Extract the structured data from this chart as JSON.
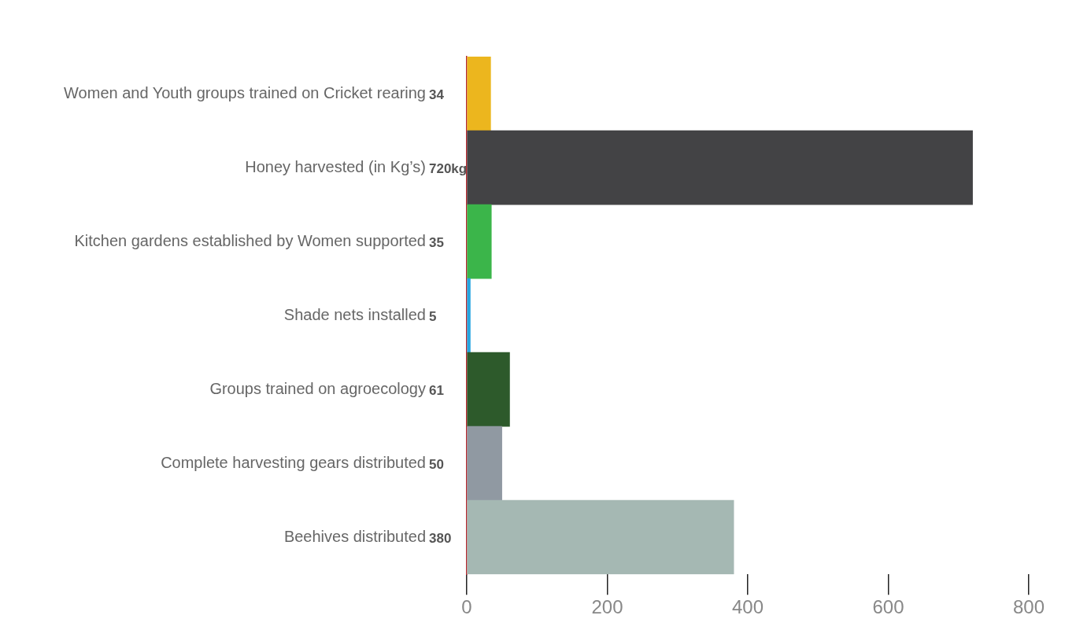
{
  "chart_data": {
    "type": "bar",
    "orientation": "horizontal",
    "categories": [
      "Women and Youth groups trained on Cricket rearing",
      "Honey harvested (in Kg’s)",
      "Kitchen gardens established by Women supported",
      "Shade nets installed",
      "Groups trained on agroecology",
      "Complete harvesting gears distributed",
      "Beehives distributed"
    ],
    "values": [
      34,
      720,
      35,
      5,
      61,
      50,
      380
    ],
    "value_labels": [
      "34",
      "720kg",
      "35",
      "5",
      "61",
      "50",
      "380"
    ],
    "colors": [
      "#ecb61e",
      "#434345",
      "#3bb54a",
      "#27a6e1",
      "#2d5a2b",
      "#9099a2",
      "#a5b8b3"
    ],
    "xlim": [
      0,
      800
    ],
    "xticks": [
      0,
      200,
      400,
      600,
      800
    ],
    "grid": false,
    "legend": false
  }
}
